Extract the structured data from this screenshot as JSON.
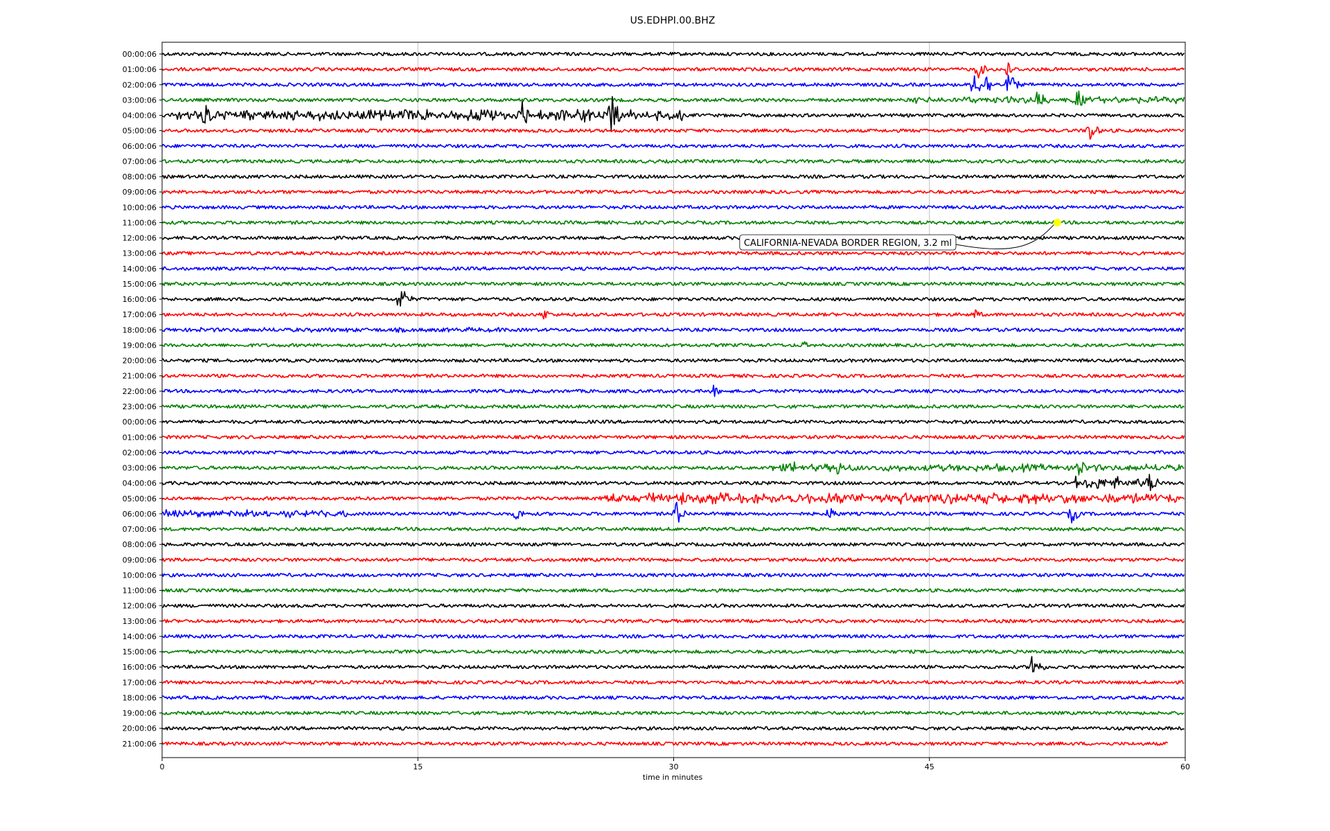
{
  "chart_data": {
    "type": "line",
    "title": "US.EDHPI.00.BHZ",
    "xlabel": "time in minutes",
    "ylabel": "",
    "xlim": [
      0,
      60
    ],
    "x_ticks": [
      "0",
      "15",
      "30",
      "45",
      "60"
    ],
    "x_tick_values": [
      0,
      15,
      30,
      45,
      60
    ],
    "grid": "vertical gridlines at 15-minute intervals",
    "colors_cycle": [
      "#000000",
      "#ff0000",
      "#0000ff",
      "#008000"
    ],
    "row_labels": [
      "00:00:06",
      "01:00:06",
      "02:00:06",
      "03:00:06",
      "04:00:06",
      "05:00:06",
      "06:00:06",
      "07:00:06",
      "08:00:06",
      "09:00:06",
      "10:00:06",
      "11:00:06",
      "12:00:06",
      "13:00:06",
      "14:00:06",
      "15:00:06",
      "16:00:06",
      "17:00:06",
      "18:00:06",
      "19:00:06",
      "20:00:06",
      "21:00:06",
      "22:00:06",
      "23:00:06",
      "00:00:06",
      "01:00:06",
      "02:00:06",
      "03:00:06",
      "04:00:06",
      "05:00:06",
      "06:00:06",
      "07:00:06",
      "08:00:06",
      "09:00:06",
      "10:00:06",
      "11:00:06",
      "12:00:06",
      "13:00:06",
      "14:00:06",
      "15:00:06",
      "16:00:06",
      "17:00:06",
      "18:00:06",
      "19:00:06",
      "20:00:06",
      "21:00:06"
    ],
    "last_row_end_minute": 59,
    "events": [
      {
        "row": 1,
        "minute": 47.8,
        "amp": 0.8
      },
      {
        "row": 1,
        "minute": 49.5,
        "amp": 0.7
      },
      {
        "row": 2,
        "minute": 47.6,
        "amp": 1.2
      },
      {
        "row": 2,
        "minute": 48.3,
        "amp": 0.9
      },
      {
        "row": 2,
        "minute": 49.6,
        "amp": 1.1
      },
      {
        "row": 3,
        "minute": 51.3,
        "amp": 1.0
      },
      {
        "row": 3,
        "minute": 53.6,
        "amp": 1.0
      },
      {
        "row": 4,
        "minute": 2.4,
        "amp": 1.2
      },
      {
        "row": 4,
        "minute": 14.0,
        "amp": 0.9
      },
      {
        "row": 4,
        "minute": 21.0,
        "amp": 1.4
      },
      {
        "row": 4,
        "minute": 24.7,
        "amp": 1.0
      },
      {
        "row": 4,
        "minute": 26.3,
        "amp": 1.8
      },
      {
        "row": 5,
        "minute": 54.3,
        "amp": 1.1
      },
      {
        "row": 16,
        "minute": 13.9,
        "amp": 1.3
      },
      {
        "row": 17,
        "minute": 22.3,
        "amp": 0.6
      },
      {
        "row": 17,
        "minute": 47.6,
        "amp": 0.5
      },
      {
        "row": 19,
        "minute": 37.5,
        "amp": 0.4
      },
      {
        "row": 22,
        "minute": 32.3,
        "amp": 0.5
      },
      {
        "row": 27,
        "minute": 36.9,
        "amp": 0.8
      },
      {
        "row": 27,
        "minute": 39.5,
        "amp": 0.8
      },
      {
        "row": 27,
        "minute": 53.6,
        "amp": 1.2
      },
      {
        "row": 28,
        "minute": 57.9,
        "amp": 0.8
      },
      {
        "row": 29,
        "minute": 26.4,
        "amp": 0.7
      },
      {
        "row": 29,
        "minute": 30.3,
        "amp": 0.9
      },
      {
        "row": 30,
        "minute": 20.7,
        "amp": 0.7
      },
      {
        "row": 30,
        "minute": 30.1,
        "amp": 1.1
      },
      {
        "row": 30,
        "minute": 39.1,
        "amp": 0.7
      },
      {
        "row": 30,
        "minute": 53.3,
        "amp": 0.8
      },
      {
        "row": 40,
        "minute": 51.0,
        "amp": 1.2
      }
    ],
    "bursts": [
      {
        "row": 4,
        "start": 0.5,
        "end": 30.5,
        "amp": 0.35
      },
      {
        "row": 3,
        "start": 44.0,
        "end": 60.0,
        "amp": 0.22
      },
      {
        "row": 27,
        "start": 35.5,
        "end": 60.0,
        "amp": 0.25
      },
      {
        "row": 28,
        "start": 53.5,
        "end": 58.5,
        "amp": 0.4
      },
      {
        "row": 29,
        "start": 25.5,
        "end": 59.5,
        "amp": 0.35
      },
      {
        "row": 30,
        "start": 0.0,
        "end": 11.0,
        "amp": 0.25
      },
      {
        "row": 18,
        "start": 0.0,
        "end": 20.0,
        "amp": 0.15
      }
    ],
    "annotation": {
      "text": "CALIFORNIA-NEVADA BORDER REGION, 3.2 ml",
      "row": 11,
      "minute": 52.5,
      "marker_color": "#ffff00"
    }
  }
}
